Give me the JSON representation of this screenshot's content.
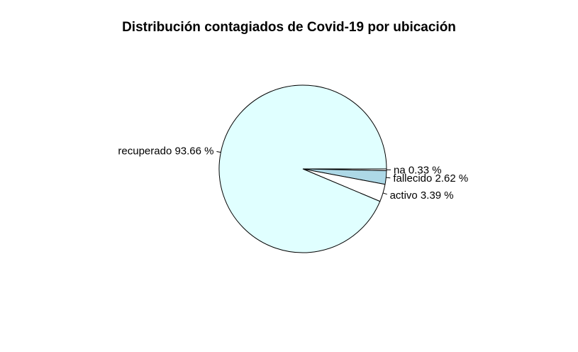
{
  "chart_data": {
    "type": "pie",
    "title": "Distribución contagiados de Covid-19 por ubicación",
    "slices": [
      {
        "label": "na 0.33 %",
        "value": 0.33,
        "color": "#ffffff"
      },
      {
        "label": "fallecido 2.62 %",
        "value": 2.62,
        "color": "#add8e6"
      },
      {
        "label": "activo 3.39 %",
        "value": 3.39,
        "color": "#ffffff"
      },
      {
        "label": "recuperado 93.66 %",
        "value": 93.66,
        "color": "#e0ffff"
      }
    ],
    "start_angle_deg": 0,
    "direction": "clockwise",
    "legend": "none"
  }
}
